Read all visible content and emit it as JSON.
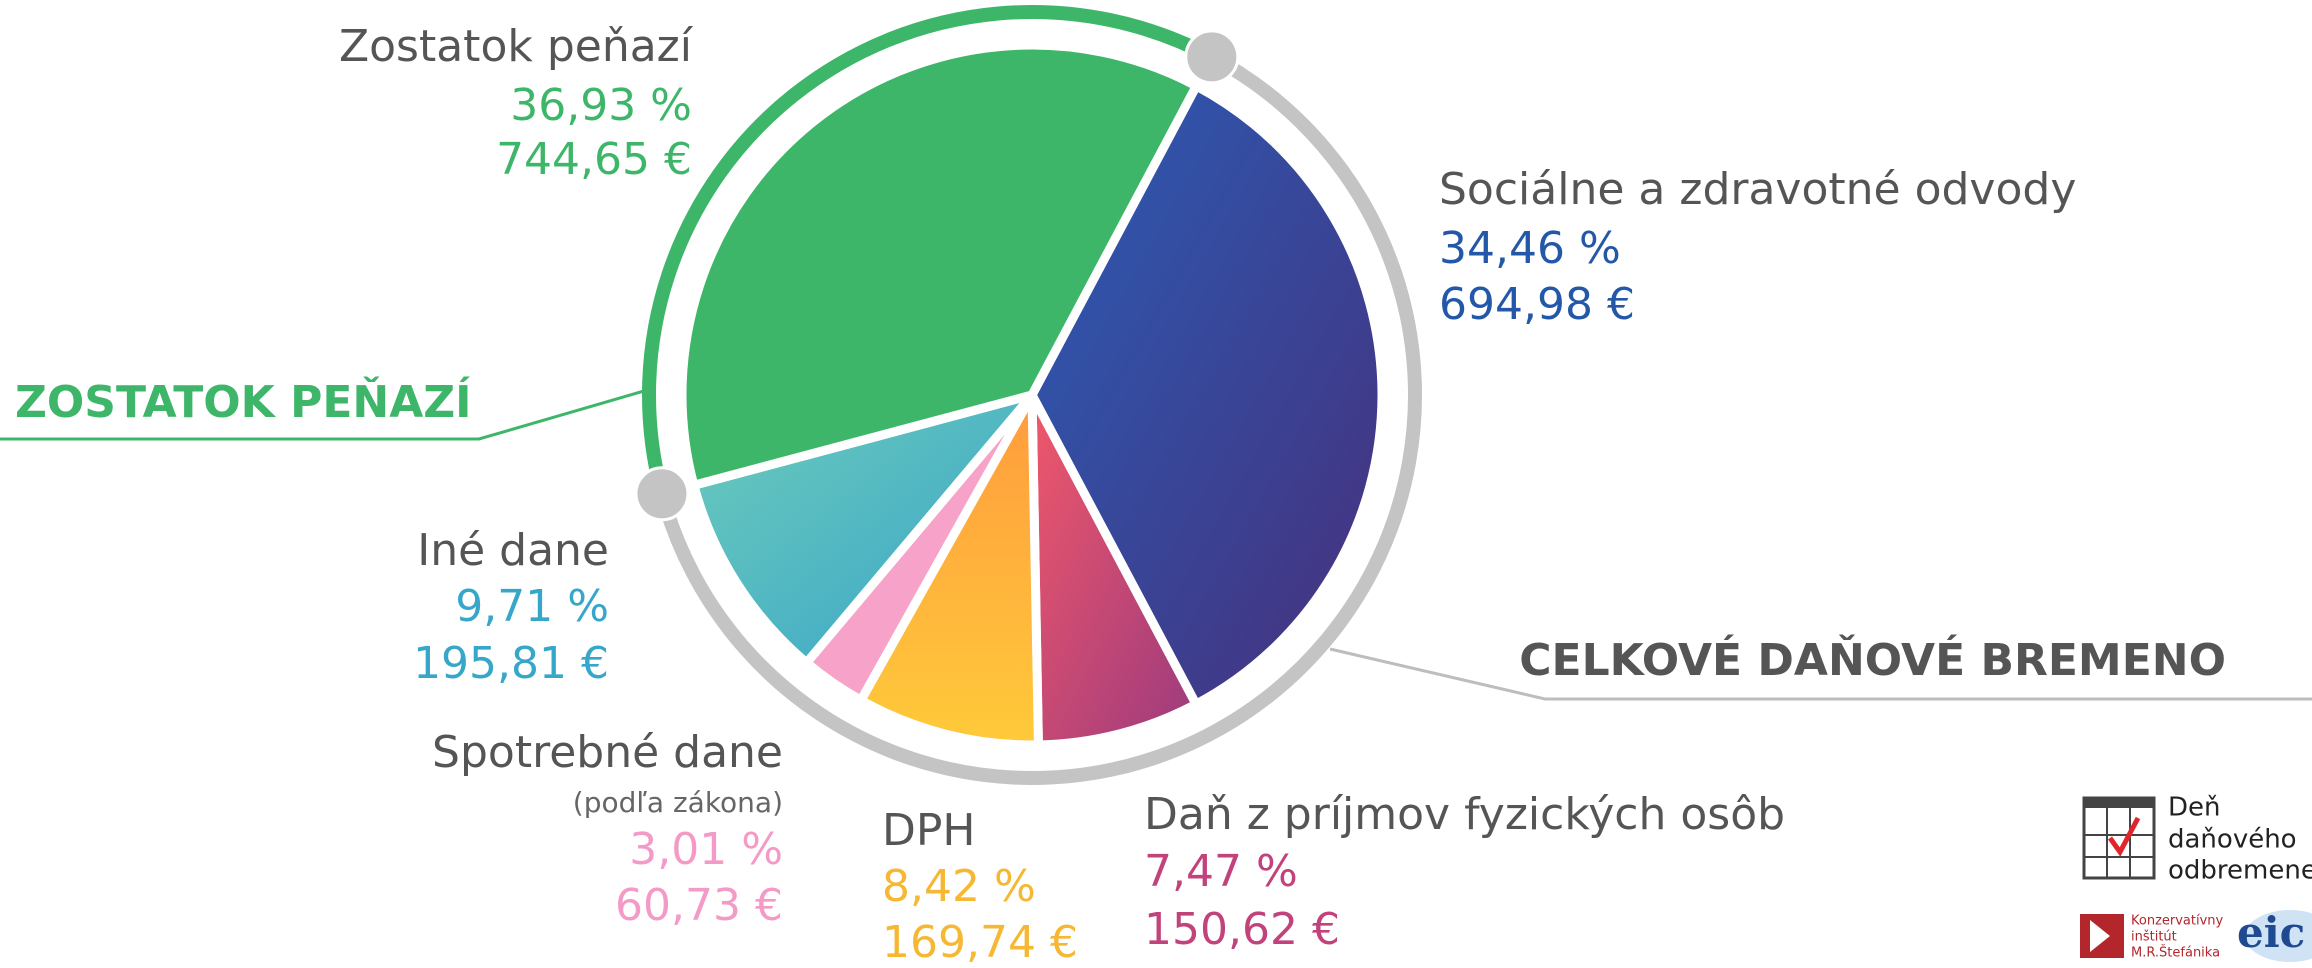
{
  "chart_data": {
    "type": "pie",
    "categories": [
      "Sociálne a zdravotné odvody",
      "Daň z príjmov fyzických osôb",
      "DPH",
      "Spotrebné dane",
      "Iné dane",
      "Zostatok peňazí"
    ],
    "values": [
      34.46,
      7.47,
      8.42,
      3.01,
      9.71,
      36.93
    ],
    "value_labels": [
      "34,46 %",
      "7,47 %",
      "8,42 %",
      "3,01 %",
      "9,71 %",
      "36,93 %"
    ],
    "amounts": [
      694.98,
      150.62,
      169.74,
      60.73,
      195.81,
      744.65
    ],
    "amount_labels": [
      "694,98 €",
      "150,62 €",
      "169,74 €",
      "60,73 €",
      "195,81 €",
      "744,65 €"
    ],
    "colors": [
      [
        "#2a5db5",
        "#472f7c"
      ],
      [
        "#f0586a",
        "#9c3a7e"
      ],
      [
        "#ff9b3e",
        "#ffca3a"
      ],
      [
        "#f7a3c9",
        "#f7a3c9"
      ],
      [
        "#6dcbbb",
        "#37a4c9"
      ],
      [
        "#3db66a",
        "#3db66a"
      ]
    ],
    "text_colors": [
      "#2358a8",
      "#c2437c",
      "#f6b832",
      "#f49ac6",
      "#36a7c9",
      "#3db66a"
    ],
    "category_note": "(podľa zákona)",
    "group_labels": [
      "ZOSTATOK PEŇAZÍ",
      "CELKOVÉ DAŇOVÉ BREMENO"
    ]
  },
  "logos": {
    "calendar": [
      "Deň",
      "daňového",
      "odbremenenia"
    ],
    "institute": [
      "Konzervatívny",
      "inštitút",
      "M.R.Štefánika"
    ],
    "eic": "eic"
  }
}
